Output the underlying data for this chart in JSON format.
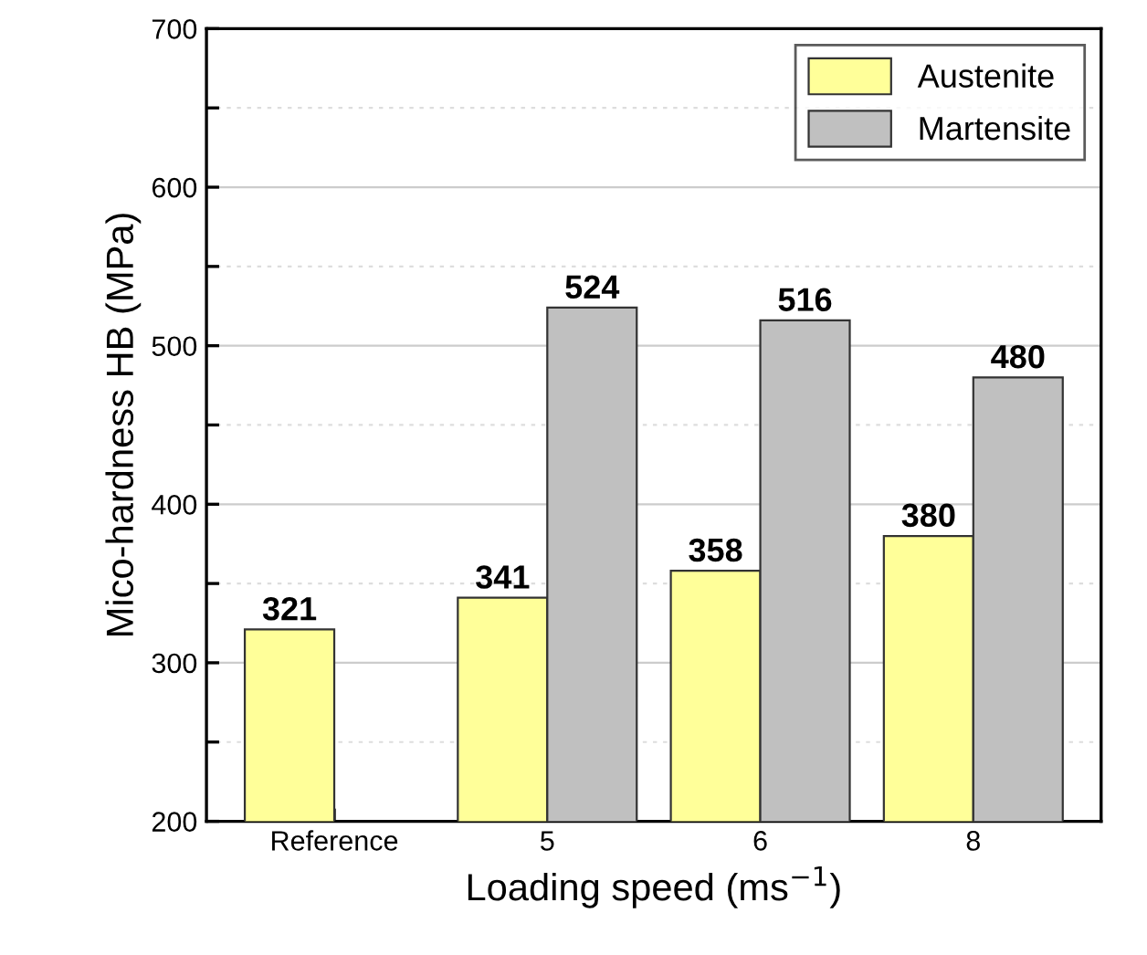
{
  "chart_data": {
    "type": "bar",
    "xlabel": "Loading speed (ms$^{−1}$)",
    "ylabel": "Mico-hardness HB (MPa)",
    "categories": [
      "Reference",
      "5",
      "6",
      "8"
    ],
    "series": [
      {
        "name": "Austenite",
        "color": "#ffff99",
        "values": [
          321,
          341,
          358,
          380
        ]
      },
      {
        "name": "Martensite",
        "color": "#c0c0c0",
        "values": [
          null,
          524,
          516,
          480
        ]
      }
    ],
    "ylim": [
      200,
      700
    ],
    "yticks": [
      200,
      {
        "value": 250,
        "label": null
      },
      300,
      {
        "value": 350,
        "label": null
      },
      400,
      {
        "value": 450,
        "label": null
      },
      500,
      {
        "value": 550,
        "label": null
      },
      600,
      {
        "value": 650,
        "label": null
      },
      700
    ],
    "grid": "y",
    "legend": "top right",
    "data_labels": true
  }
}
